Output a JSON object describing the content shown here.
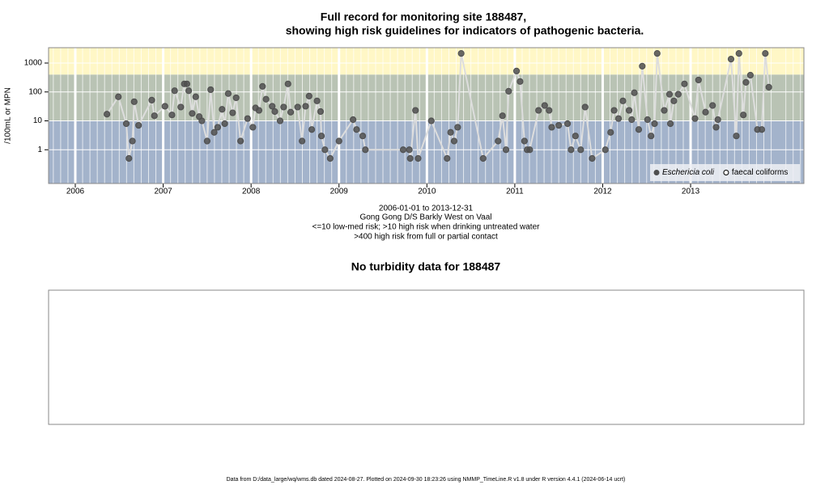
{
  "chart_data": [
    {
      "type": "line",
      "title": [
        "Full record for monitoring site 188487,",
        "showing high risk guidelines for indicators of pathogenic bacteria."
      ],
      "ylabel": "/100mL or MPN",
      "notes": [
        "2006-01-01 to 2013-12-31",
        "Gong Gong D/S Barkly West on Vaal",
        "<=10 low-med risk; >10 high risk when drinking untreated water",
        ">400 high risk from full or partial contact"
      ],
      "log": true,
      "grid": true,
      "legend": "bottom-right",
      "xlim": [
        2005.696,
        2014.289
      ],
      "xticks": [
        2006,
        2007,
        2008,
        2009,
        2010,
        2011,
        2012,
        2013
      ],
      "ylim": [
        0.068,
        3400
      ],
      "yticks": [
        1,
        10,
        100,
        1000
      ],
      "guidelines": [
        10,
        400
      ],
      "band_colors": [
        "#a3b3cb",
        "#b9c3b4",
        "#fff7c6"
      ],
      "line_color": "#dddddd",
      "series": [
        {
          "name": "Eschericia coli",
          "color": "#4f4f4f",
          "marker": "filled",
          "x": [
            2006.36,
            2006.49,
            2006.58,
            2006.61,
            2006.65,
            2006.67,
            2006.72,
            2006.87,
            2006.9,
            2007.02,
            2007.1,
            2007.13,
            2007.2,
            2007.24,
            2007.27,
            2007.29,
            2007.33,
            2007.37,
            2007.41,
            2007.44,
            2007.5,
            2007.54,
            2007.58,
            2007.62,
            2007.67,
            2007.7,
            2007.74,
            2007.79,
            2007.83,
            2007.88,
            2007.96,
            2008.02,
            2008.05,
            2008.09,
            2008.13,
            2008.17,
            2008.24,
            2008.27,
            2008.33,
            2008.37,
            2008.42,
            2008.45,
            2008.53,
            2008.58,
            2008.62,
            2008.66,
            2008.69,
            2008.75,
            2008.79,
            2008.8,
            2008.84,
            2008.9,
            2009.0,
            2009.16,
            2009.2,
            2009.27,
            2009.3,
            2009.73,
            2009.8,
            2009.81,
            2009.87,
            2009.9,
            2010.05,
            2010.23,
            2010.27,
            2010.31,
            2010.35,
            2010.39,
            2010.64,
            2010.81,
            2010.86,
            2010.9,
            2010.93,
            2011.02,
            2011.06,
            2011.11,
            2011.14,
            2011.17,
            2011.27,
            2011.34,
            2011.39,
            2011.42,
            2011.5,
            2011.6,
            2011.64,
            2011.69,
            2011.75,
            2011.8,
            2011.88,
            2012.03,
            2012.09,
            2012.13,
            2012.18,
            2012.23,
            2012.3,
            2012.33,
            2012.36,
            2012.41,
            2012.45,
            2012.51,
            2012.55,
            2012.59,
            2012.62,
            2012.7,
            2012.76,
            2012.77,
            2012.81,
            2012.86,
            2012.93,
            2013.05,
            2013.09,
            2013.17,
            2013.25,
            2013.29,
            2013.31,
            2013.46,
            2013.52,
            2013.55,
            2013.6,
            2013.63,
            2013.68,
            2013.76,
            2013.81,
            2013.85,
            2013.89
          ],
          "values": [
            17,
            68,
            8,
            0.5,
            2,
            46,
            7,
            52,
            15,
            32,
            16,
            110,
            30,
            190,
            190,
            110,
            18,
            68,
            14,
            10,
            2,
            120,
            4,
            6,
            25,
            8,
            88,
            19,
            63,
            2,
            12,
            6,
            28,
            23,
            156,
            56,
            32,
            21,
            10,
            30,
            190,
            20,
            30,
            2,
            32,
            72,
            5,
            49,
            21,
            3,
            1,
            0.5,
            2,
            11,
            5,
            3,
            1,
            1,
            1,
            0.5,
            23,
            0.5,
            10,
            0.5,
            4,
            2,
            6,
            2150,
            0.5,
            2,
            15,
            1,
            106,
            530,
            230,
            2,
            1,
            1,
            23,
            34,
            23,
            6,
            7,
            8,
            1,
            3,
            1,
            30,
            0.5,
            1,
            4,
            23,
            12,
            49,
            23,
            11,
            94,
            5,
            780,
            11,
            3,
            8,
            2150,
            23,
            83,
            8,
            49,
            83,
            190,
            12,
            260,
            20,
            34,
            6,
            11,
            1370,
            3,
            2150,
            16,
            215,
            380,
            5,
            5,
            2150,
            146
          ]
        },
        {
          "name": "faecal coliforms",
          "color": "#000000",
          "marker": "open",
          "x": [],
          "values": []
        }
      ]
    },
    {
      "type": "empty",
      "title": "No turbidity data for 188487"
    }
  ],
  "footer": "Data from D:/data_large/wq/wms.db dated 2024-08-27. Plotted on 2024-09-30 18:23:26 using NMMP_TimeLine.R v1.8 under R version 4.4.1 (2024-06-14 ucrt)"
}
